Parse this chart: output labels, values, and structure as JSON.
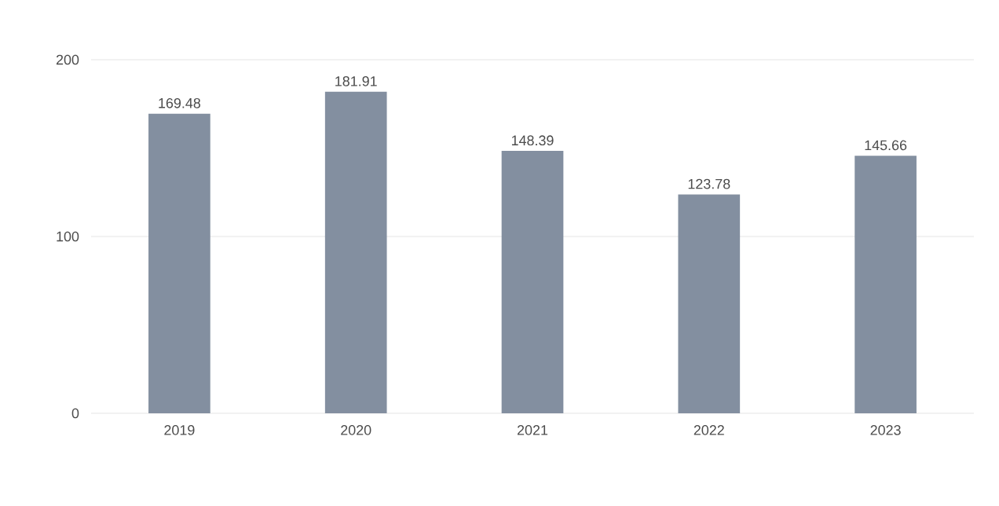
{
  "chart_data": {
    "type": "bar",
    "categories": [
      "2019",
      "2020",
      "2021",
      "2022",
      "2023"
    ],
    "values": [
      169.48,
      181.91,
      148.39,
      123.78,
      145.66
    ],
    "value_labels": [
      "169.48",
      "181.91",
      "148.39",
      "123.78",
      "145.66"
    ],
    "color": "#838fa0",
    "ylim": [
      0,
      200
    ],
    "yticks": [
      0,
      100,
      200
    ],
    "grid": "y"
  }
}
